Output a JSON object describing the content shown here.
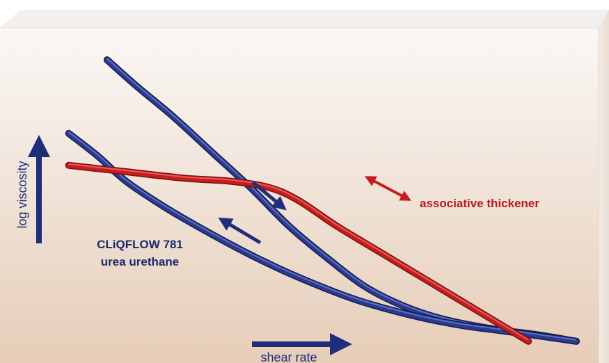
{
  "chart_data": {
    "type": "line",
    "title": "",
    "xlabel": "shear rate",
    "ylabel": "log viscosity",
    "xlim": [
      0,
      100
    ],
    "ylim": [
      0,
      100
    ],
    "grid": false,
    "legend": "none",
    "series": [
      {
        "name": "CLiQFLOW 781 urea urethane",
        "curve": "upper-branch",
        "color": "#2b3a8c",
        "points": [
          [
            2,
            90
          ],
          [
            8,
            82
          ],
          [
            16,
            72
          ],
          [
            24,
            61
          ],
          [
            32,
            50
          ],
          [
            40,
            38
          ],
          [
            48,
            28
          ],
          [
            56,
            19
          ],
          [
            64,
            13
          ],
          [
            72,
            9
          ],
          [
            82,
            6
          ],
          [
            92,
            4
          ],
          [
            100,
            2
          ]
        ]
      },
      {
        "curve": "lower-branch",
        "color": "#2b3a8c",
        "points": [
          [
            -6,
            67
          ],
          [
            0,
            60
          ],
          [
            6,
            52
          ],
          [
            14,
            44
          ],
          [
            22,
            37
          ],
          [
            32,
            29
          ],
          [
            42,
            22
          ],
          [
            54,
            15
          ],
          [
            66,
            10
          ],
          [
            76,
            7
          ],
          [
            86,
            5
          ],
          [
            100,
            2
          ]
        ]
      },
      {
        "name": "associative thickener",
        "color": "#c41e1e",
        "points": [
          [
            -6,
            57
          ],
          [
            6,
            55
          ],
          [
            18,
            53
          ],
          [
            28,
            52
          ],
          [
            36,
            50
          ],
          [
            42,
            46
          ],
          [
            50,
            38
          ],
          [
            60,
            29
          ],
          [
            70,
            20
          ],
          [
            80,
            11
          ],
          [
            90,
            2
          ]
        ]
      }
    ],
    "annotations": [
      {
        "text": "associative thickener",
        "color": "#b31b1b"
      },
      {
        "text": "CLiQFLOW 781",
        "color": "#1c2a6b"
      },
      {
        "text": "urea urethane",
        "color": "#1c2a6b"
      }
    ]
  },
  "colors": {
    "navy": "#1f2d7a",
    "red": "#c41e1e",
    "panel_top": "#fbfaf9",
    "panel_bottom": "#e6cdb8"
  }
}
